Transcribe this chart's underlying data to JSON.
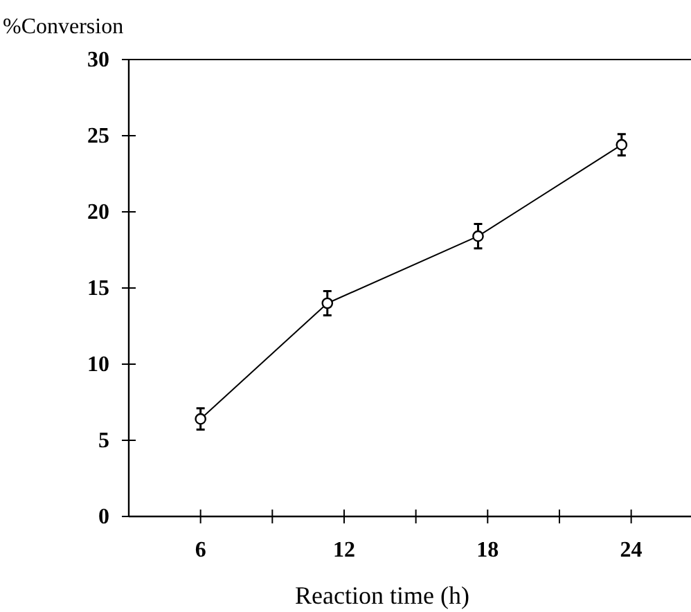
{
  "chart_data": {
    "type": "line",
    "xlabel": "Reaction time (h)",
    "ylabel": "%Conversion",
    "x": [
      6,
      11.3,
      17.6,
      23.6
    ],
    "series": [
      {
        "color": "#000000",
        "values": [
          6.4,
          14.0,
          18.4,
          24.4
        ],
        "errors": [
          0.7,
          0.8,
          0.8,
          0.7
        ]
      }
    ],
    "xlim": [
      3,
      26.5
    ],
    "xticks": [
      6,
      {
        "value": 9,
        "label": null
      },
      12,
      {
        "value": 15,
        "label": null
      },
      18,
      {
        "value": 21,
        "label": null
      },
      24
    ],
    "ylim": [
      0,
      30
    ],
    "yticks": [
      0,
      5,
      10,
      15,
      20,
      25,
      30
    ],
    "marker": "circle",
    "line_style": "solid",
    "grid": false
  }
}
